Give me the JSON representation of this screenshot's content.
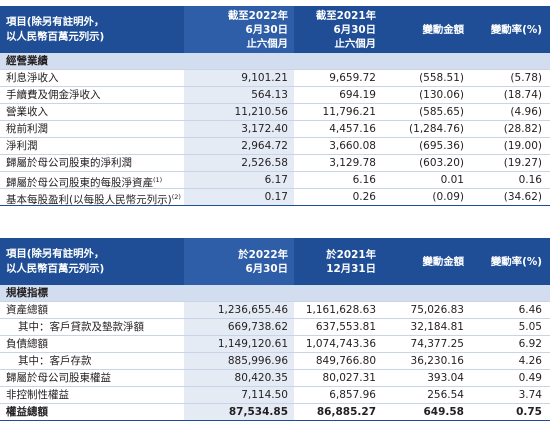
{
  "table1": {
    "header": {
      "label_line1": "項目(除另有註明外，",
      "label_line2": "以人民幣百萬元列示)",
      "col1_line1": "截至2022年",
      "col1_line2": "6月30日",
      "col1_line3": "止六個月",
      "col2_line1": "截至2021年",
      "col2_line2": "6月30日",
      "col2_line3": "止六個月",
      "col3": "變動金額",
      "col4": "變動率(%)"
    },
    "section": "經營業績",
    "rows": [
      {
        "label": "利息淨收入",
        "v1": "9,101.21",
        "v2": "9,659.72",
        "v3": "(558.51)",
        "v4": "(5.78)"
      },
      {
        "label": "手續費及佣金淨收入",
        "v1": "564.13",
        "v2": "694.19",
        "v3": "(130.06)",
        "v4": "(18.74)"
      },
      {
        "label": "營業收入",
        "v1": "11,210.56",
        "v2": "11,796.21",
        "v3": "(585.65)",
        "v4": "(4.96)"
      },
      {
        "label": "稅前利潤",
        "v1": "3,172.40",
        "v2": "4,457.16",
        "v3": "(1,284.76)",
        "v4": "(28.82)"
      },
      {
        "label": "淨利潤",
        "v1": "2,964.72",
        "v2": "3,660.08",
        "v3": "(695.36)",
        "v4": "(19.00)"
      },
      {
        "label": "歸屬於母公司股東的淨利潤",
        "v1": "2,526.58",
        "v2": "3,129.78",
        "v3": "(603.20)",
        "v4": "(19.27)"
      },
      {
        "label": "歸屬於母公司股東的每股淨資產",
        "sup": "(1)",
        "v1": "6.17",
        "v2": "6.16",
        "v3": "0.01",
        "v4": "0.16"
      },
      {
        "label": "基本每股盈利(以每股人民幣元列示)",
        "sup": "(2)",
        "v1": "0.17",
        "v2": "0.26",
        "v3": "(0.09)",
        "v4": "(34.62)"
      }
    ]
  },
  "table2": {
    "header": {
      "label_line1": "項目(除另有註明外，",
      "label_line2": "以人民幣百萬元列示)",
      "col1_line1": "於2022年",
      "col1_line2": "6月30日",
      "col2_line1": "於2021年",
      "col2_line2": "12月31日",
      "col3": "變動金額",
      "col4": "變動率(%)"
    },
    "section": "規模指標",
    "rows": [
      {
        "label": "資產總額",
        "v1": "1,236,655.46",
        "v2": "1,161,628.63",
        "v3": "75,026.83",
        "v4": "6.46"
      },
      {
        "label": "其中：客戶貸款及墊款淨額",
        "v1": "669,738.62",
        "v2": "637,553.81",
        "v3": "32,184.81",
        "v4": "5.05"
      },
      {
        "label": "負債總額",
        "v1": "1,149,120.61",
        "v2": "1,074,743.36",
        "v3": "74,377.25",
        "v4": "6.92"
      },
      {
        "label": "其中：客戶存款",
        "v1": "885,996.96",
        "v2": "849,766.80",
        "v3": "36,230.16",
        "v4": "4.26"
      },
      {
        "label": "歸屬於母公司股東權益",
        "v1": "80,420.35",
        "v2": "80,027.31",
        "v3": "393.04",
        "v4": "0.49"
      },
      {
        "label": "非控制性權益",
        "v1": "7,114.50",
        "v2": "6,857.96",
        "v3": "256.54",
        "v4": "3.74"
      },
      {
        "label": "權益總額",
        "v1": "87,534.85",
        "v2": "86,885.27",
        "v3": "649.58",
        "v4": "0.75"
      }
    ]
  }
}
